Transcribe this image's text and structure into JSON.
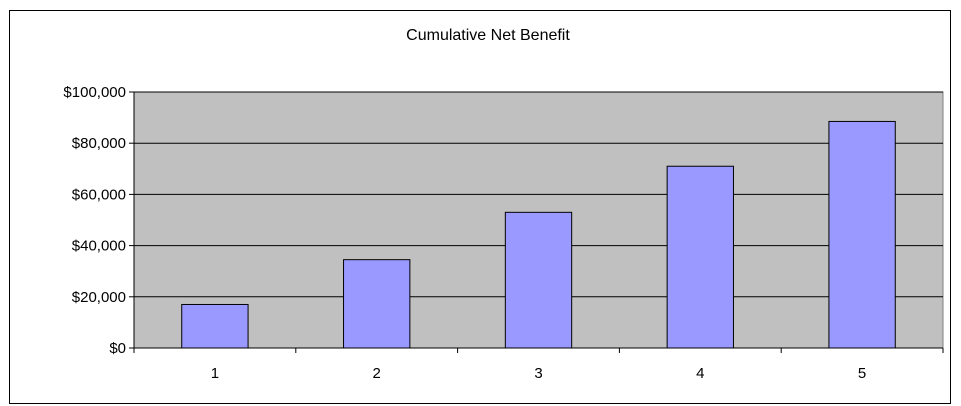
{
  "chart_data": {
    "type": "bar",
    "title": "Cumulative Net Benefit",
    "xlabel": "",
    "ylabel": "",
    "categories": [
      "1",
      "2",
      "3",
      "4",
      "5"
    ],
    "values": [
      17000,
      34500,
      53000,
      71000,
      88500
    ],
    "ylim": [
      0,
      100000
    ],
    "yticks": [
      0,
      20000,
      40000,
      60000,
      80000,
      100000
    ],
    "ytick_labels": [
      "$0",
      "$20,000",
      "$40,000",
      "$60,000",
      "$80,000",
      "$100,000"
    ],
    "grid": true,
    "legend": "none",
    "colors": {
      "bar_fill": "#9999ff",
      "bar_stroke": "#000000",
      "plot_background": "#c0c0c0",
      "gridline": "#000000"
    }
  }
}
